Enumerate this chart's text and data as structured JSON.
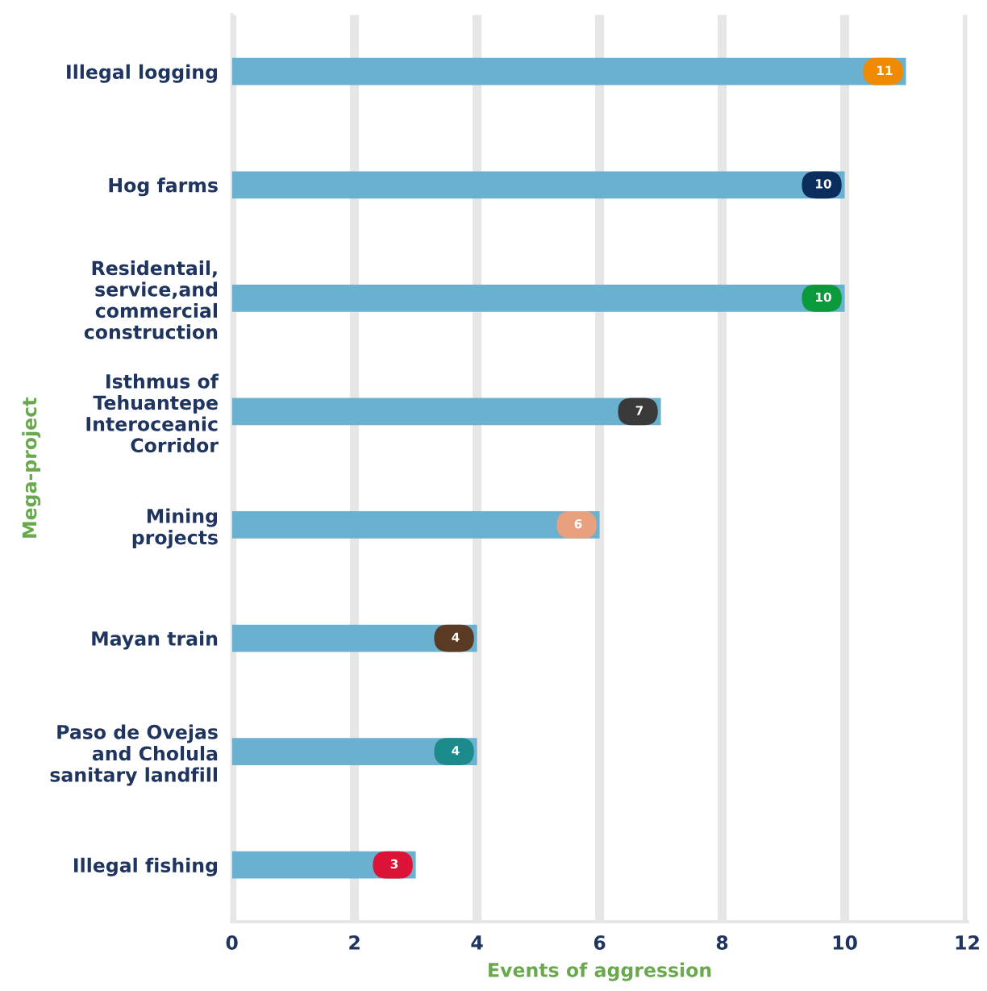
{
  "chart_data": {
    "type": "bar",
    "orientation": "horizontal",
    "xlabel": "Events of aggression",
    "ylabel": "Mega-project",
    "categories": [
      "Illegal logging",
      "Hog farms",
      "Residentail,\nservice,and\ncommercial\nconstruction",
      "Isthmus of\nTehuantepe\nInteroceanic\nCorridor",
      "Mining\nprojects",
      "Mayan train",
      "Paso de Ovejas\nand Cholula\nsanitary landfill",
      "Illegal fishing"
    ],
    "series": [
      {
        "color": "#6ab0cf",
        "values": [
          11,
          10,
          10,
          7,
          6,
          4,
          4,
          3
        ]
      }
    ],
    "colors": [
      "#f08a00",
      "#0a2d5e",
      "#0a9a3c",
      "#3a3a3a",
      "#e8a07e",
      "#5a3a22",
      "#1a8a8a",
      "#dc1237"
    ],
    "data_labels": true,
    "xlim": [
      0,
      12
    ],
    "xticks": [
      0,
      2,
      4,
      6,
      8,
      10,
      12
    ],
    "grid": "x"
  }
}
